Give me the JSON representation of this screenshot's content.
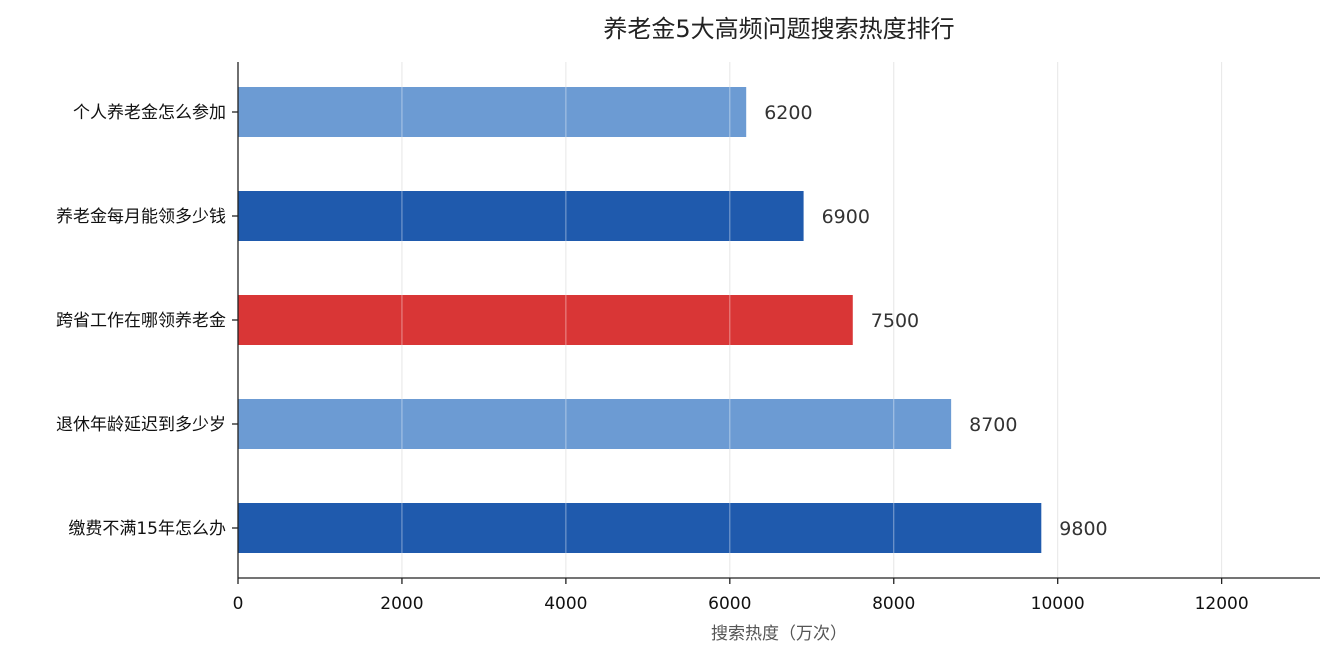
{
  "chart_data": {
    "type": "bar",
    "orientation": "horizontal",
    "title": "养老金5大高频问题搜索热度排行",
    "xlabel": "搜索热度（万次）",
    "ylabel": "",
    "categories": [
      "个人养老金怎么参加",
      "养老金每月能领多少钱",
      "跨省工作在哪领养老金",
      "退休年龄延迟到多少岁",
      "缴费不满15年怎么办"
    ],
    "values": [
      6200,
      6900,
      7500,
      8700,
      9800
    ],
    "value_labels": [
      "6200",
      "6900",
      "7500",
      "8700",
      "9800"
    ],
    "bar_colors": [
      "#6c9bd3",
      "#1f5aad",
      "#d93636",
      "#6c9bd3",
      "#1f5aad"
    ],
    "xlim": [
      0,
      13200
    ],
    "xticks": [
      0,
      2000,
      4000,
      6000,
      8000,
      10000,
      12000
    ],
    "xtick_labels": [
      "0",
      "2000",
      "4000",
      "6000",
      "8000",
      "10000",
      "12000"
    ],
    "grid": "vertical",
    "legend": "none"
  }
}
